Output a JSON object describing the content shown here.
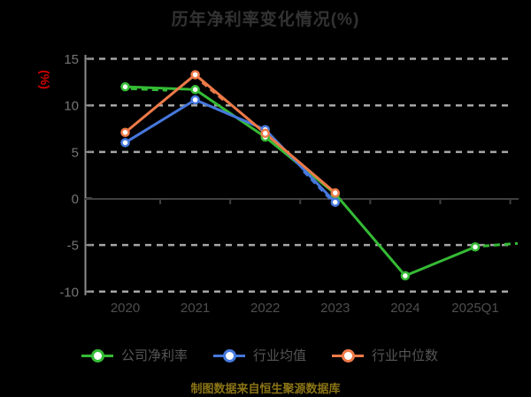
{
  "title": "历年净利率变化情况(%)",
  "footer": {
    "text": "制图数据来自恒生聚源数据库"
  },
  "colors": {
    "background": "#000000",
    "title": "#333333",
    "axis_unit": "#d10000",
    "gridline": "#a6a6a6",
    "y_axis": "#8c8c8c",
    "x_axis": "#3f3f3f",
    "y_tick_label": "#757575",
    "x_tick_label": "#4e4e4e",
    "legend_text": "#555555",
    "footer_text": "#8a7415",
    "marker_fill": "#ffffff"
  },
  "chart_data": {
    "type": "line",
    "title": "历年净利率变化情况(%)",
    "xlabel": "",
    "ylabel": "(%)",
    "categories": [
      "2020",
      "2021",
      "2022",
      "2023",
      "2024",
      "2025Q1"
    ],
    "yticks": [
      15,
      10,
      5,
      0,
      -5,
      -10
    ],
    "ylim": [
      -10,
      15
    ],
    "grid": "horizontal-dashed",
    "legend_position": "bottom",
    "marker_style": "white-filled-circle-colored-ring",
    "series": [
      {
        "name": "公司净利率",
        "key": "company-net-margin",
        "color": "#35bb35",
        "values": [
          12.0,
          11.7,
          6.6,
          0.5,
          -8.3,
          -5.2
        ]
      },
      {
        "name": "行业均值",
        "key": "industry-average",
        "color": "#4678dd",
        "values": [
          6.0,
          10.6,
          7.4,
          -0.4,
          null,
          null
        ]
      },
      {
        "name": "行业中位数",
        "key": "industry-median",
        "color": "#ee7a48",
        "values": [
          7.1,
          13.3,
          7.0,
          0.6,
          null,
          null
        ]
      }
    ]
  }
}
